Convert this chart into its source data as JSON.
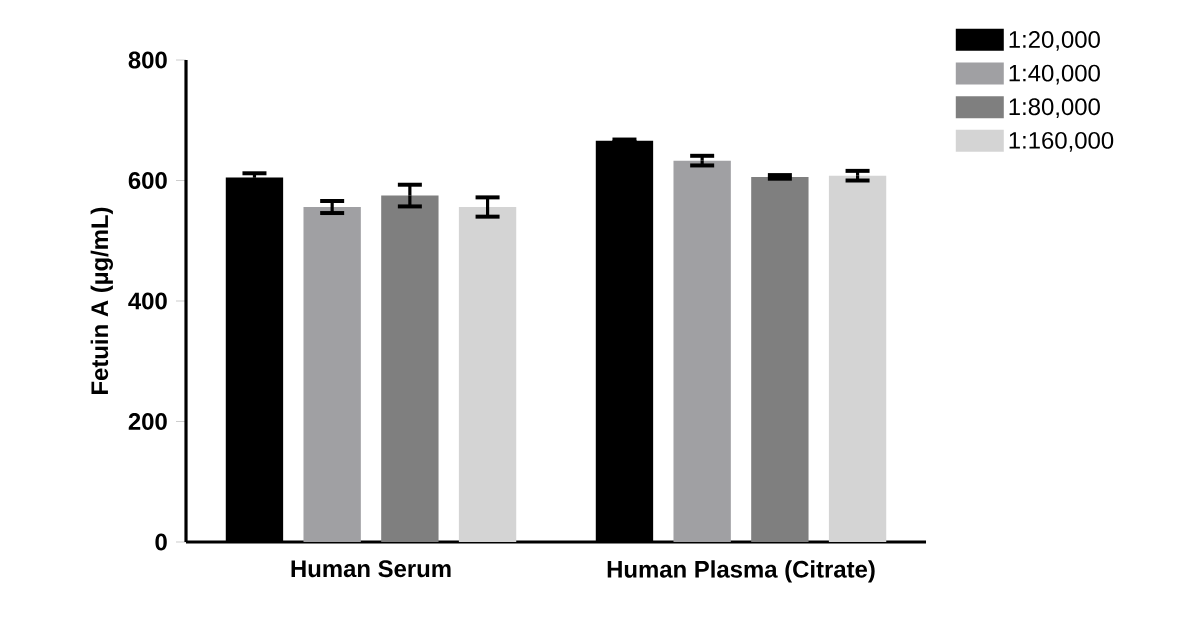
{
  "chart_data": {
    "type": "bar",
    "ylabel": "Fetuin A (µg/mL)",
    "categories": [
      "Human Serum",
      "Human Plasma (Citrate)"
    ],
    "series": [
      {
        "name": "1:20,000",
        "color": "#000000",
        "values": [
          605,
          666
        ],
        "errors": [
          7,
          2
        ]
      },
      {
        "name": "1:40,000",
        "color": "#a0a0a3",
        "values": [
          556,
          633
        ],
        "errors": [
          10,
          8
        ]
      },
      {
        "name": "1:80,000",
        "color": "#7f7f7f",
        "values": [
          575,
          606
        ],
        "errors": [
          18,
          3
        ]
      },
      {
        "name": "1:160,000",
        "color": "#d4d4d4",
        "values": [
          556,
          608
        ],
        "errors": [
          16,
          8
        ]
      }
    ],
    "ylim": [
      0,
      800
    ],
    "yticks": [
      0,
      200,
      400,
      600,
      800
    ],
    "legend": "top right",
    "grid": false
  }
}
